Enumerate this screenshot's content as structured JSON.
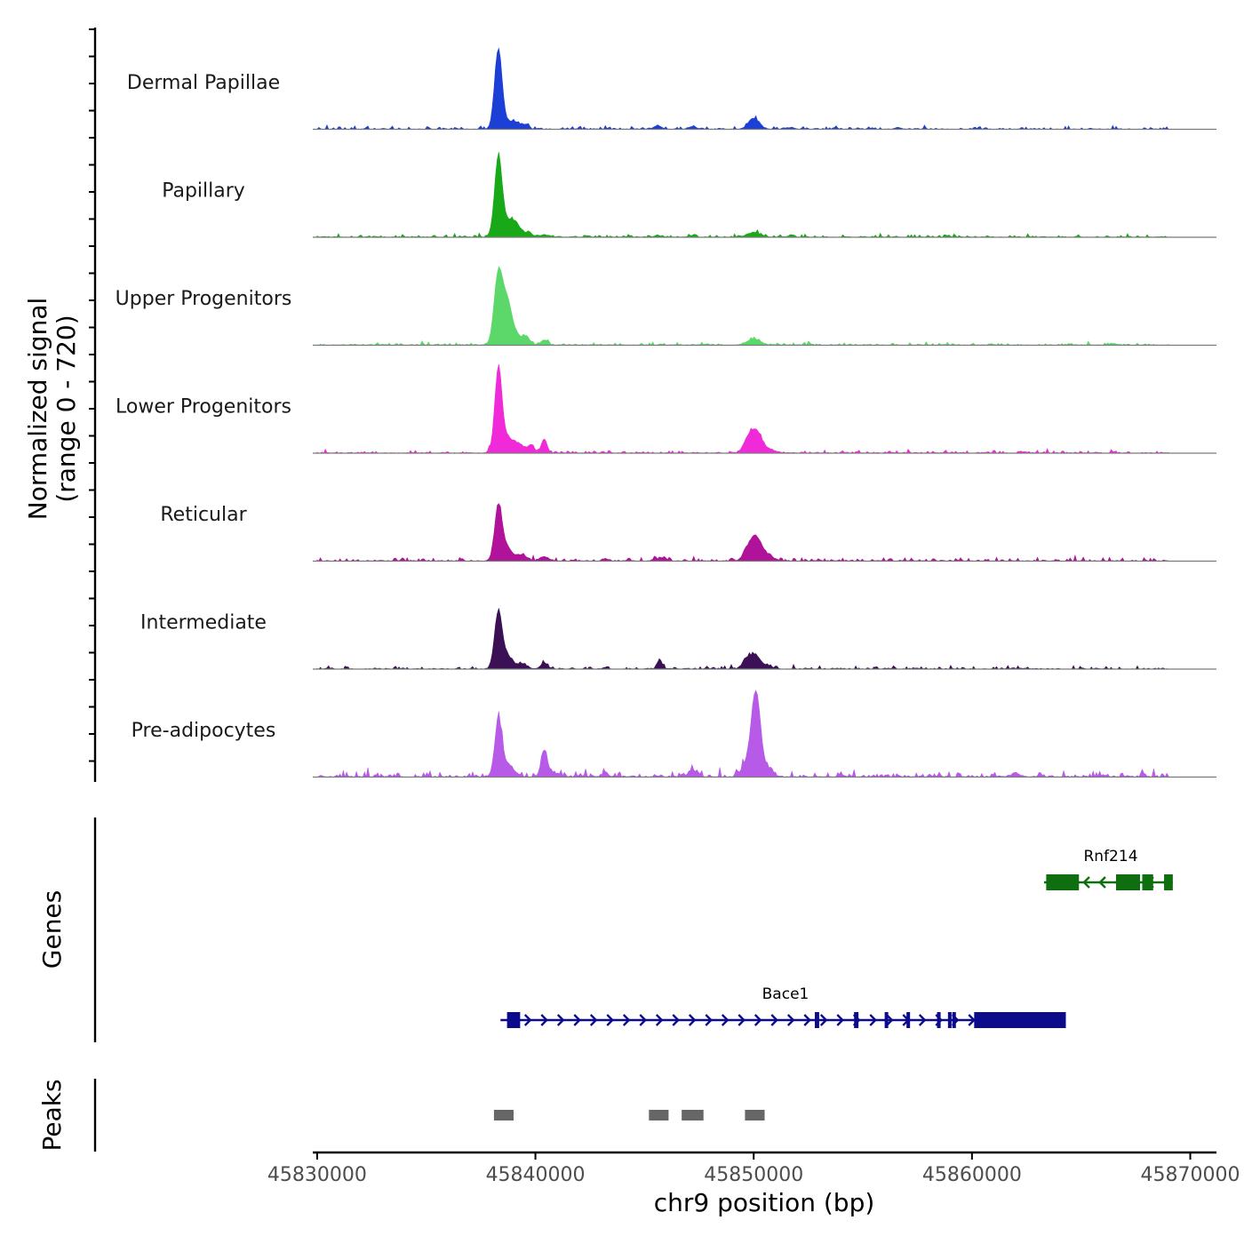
{
  "chart_data": {
    "type": "area",
    "title": "",
    "ylabel_line1": "Normalized signal",
    "ylabel_line2": "(range 0 - 720)",
    "y_range": [
      0,
      720
    ],
    "xlabel": "chr9 position (bp)",
    "xlim": [
      45829800,
      45871200
    ],
    "x_ticks": [
      45830000,
      45840000,
      45850000,
      45860000,
      45870000
    ],
    "x_tick_labels": [
      "45830000",
      "45840000",
      "45850000",
      "45860000",
      "45870000"
    ],
    "tracks": [
      {
        "name": "Dermal Papillae",
        "color": "#1c3fd6",
        "peaks": [
          [
            45838300,
            88,
            170
          ],
          [
            45838800,
            8,
            300
          ],
          [
            45839200,
            4,
            200
          ],
          [
            45839600,
            5,
            120
          ],
          [
            45845600,
            4,
            180
          ],
          [
            45847200,
            3,
            180
          ],
          [
            45850000,
            12,
            250
          ],
          [
            45851700,
            2,
            150
          ],
          [
            45856600,
            2,
            120
          ]
        ],
        "noise": 1.0
      },
      {
        "name": "Papillary",
        "color": "#18a818",
        "peaks": [
          [
            45838300,
            88,
            170
          ],
          [
            45838800,
            18,
            300
          ],
          [
            45839200,
            7,
            220
          ],
          [
            45839700,
            6,
            120
          ],
          [
            45840400,
            3,
            150
          ],
          [
            45845600,
            2,
            150
          ],
          [
            45847200,
            2,
            150
          ],
          [
            45850000,
            5,
            300
          ],
          [
            45851700,
            2,
            150
          ]
        ],
        "noise": 1.0
      },
      {
        "name": "Upper Progenitors",
        "color": "#5cd86a",
        "peaks": [
          [
            45838300,
            80,
            190
          ],
          [
            45838700,
            45,
            200
          ],
          [
            45839100,
            12,
            260
          ],
          [
            45839600,
            8,
            150
          ],
          [
            45840400,
            6,
            150
          ],
          [
            45850000,
            7,
            300
          ],
          [
            45866500,
            2,
            120
          ]
        ],
        "noise": 1.0
      },
      {
        "name": "Lower Progenitors",
        "color": "#f02ad8",
        "peaks": [
          [
            45838300,
            90,
            160
          ],
          [
            45838700,
            18,
            300
          ],
          [
            45839300,
            8,
            200
          ],
          [
            45839800,
            9,
            150
          ],
          [
            45840400,
            16,
            130
          ],
          [
            45849700,
            12,
            200
          ],
          [
            45850100,
            25,
            250
          ],
          [
            45850700,
            4,
            300
          ]
        ],
        "noise": 1.0
      },
      {
        "name": "Reticular",
        "color": "#b0139a",
        "peaks": [
          [
            45838300,
            60,
            170
          ],
          [
            45838700,
            15,
            250
          ],
          [
            45839400,
            7,
            200
          ],
          [
            45840400,
            5,
            200
          ],
          [
            45843200,
            3,
            120
          ],
          [
            45845500,
            3,
            130
          ],
          [
            45845900,
            4,
            120
          ],
          [
            45849700,
            10,
            200
          ],
          [
            45850100,
            25,
            250
          ],
          [
            45850600,
            6,
            300
          ]
        ],
        "noise": 1.2
      },
      {
        "name": "Intermediate",
        "color": "#3c1054",
        "peaks": [
          [
            45838300,
            62,
            170
          ],
          [
            45838700,
            15,
            250
          ],
          [
            45839400,
            6,
            200
          ],
          [
            45840400,
            7,
            150
          ],
          [
            45843200,
            2,
            120
          ],
          [
            45845700,
            9,
            120
          ],
          [
            45849700,
            12,
            200
          ],
          [
            45850100,
            14,
            200
          ],
          [
            45850600,
            4,
            250
          ]
        ],
        "noise": 1.0
      },
      {
        "name": "Pre-adipocytes",
        "color": "#b85ae8",
        "peaks": [
          [
            45838300,
            60,
            160
          ],
          [
            45838700,
            14,
            300
          ],
          [
            45840400,
            30,
            140
          ],
          [
            45840800,
            5,
            200
          ],
          [
            45843200,
            6,
            120
          ],
          [
            45847200,
            8,
            180
          ],
          [
            45849700,
            15,
            250
          ],
          [
            45850100,
            92,
            200
          ],
          [
            45850600,
            10,
            250
          ],
          [
            45854000,
            3,
            120
          ],
          [
            45862000,
            4,
            200
          ],
          [
            45866000,
            2,
            150
          ]
        ],
        "noise": 2.0
      }
    ],
    "genes_label": "Genes",
    "genes": [
      {
        "name": "Rnf214",
        "color": "#0f6e0f",
        "start": 45863300,
        "end": 45869200,
        "strand": "-",
        "exons": [
          [
            45863400,
            45864900,
            "cds"
          ],
          [
            45866600,
            45867700,
            "cds"
          ],
          [
            45867800,
            45868300,
            "cds"
          ],
          [
            45868800,
            45869200,
            "cds"
          ]
        ]
      },
      {
        "name": "Bace1",
        "color": "#0b0b8c",
        "start": 45838400,
        "end": 45864300,
        "strand": "+",
        "exons": [
          [
            45838700,
            45839300,
            "cds"
          ],
          [
            45852800,
            45853000,
            "utr"
          ],
          [
            45854600,
            45854800,
            "utr"
          ],
          [
            45856000,
            45856100,
            "utr"
          ],
          [
            45857000,
            45857100,
            "utr"
          ],
          [
            45858400,
            45858500,
            "utr"
          ],
          [
            45858900,
            45859000,
            "utr"
          ],
          [
            45859100,
            45859200,
            "utr"
          ],
          [
            45860100,
            45864300,
            "cds"
          ]
        ]
      }
    ],
    "peaks_label": "Peaks",
    "peak_regions": [
      [
        45838100,
        45839000
      ],
      [
        45845200,
        45846100
      ],
      [
        45846700,
        45847700
      ],
      [
        45849600,
        45850500
      ]
    ]
  }
}
